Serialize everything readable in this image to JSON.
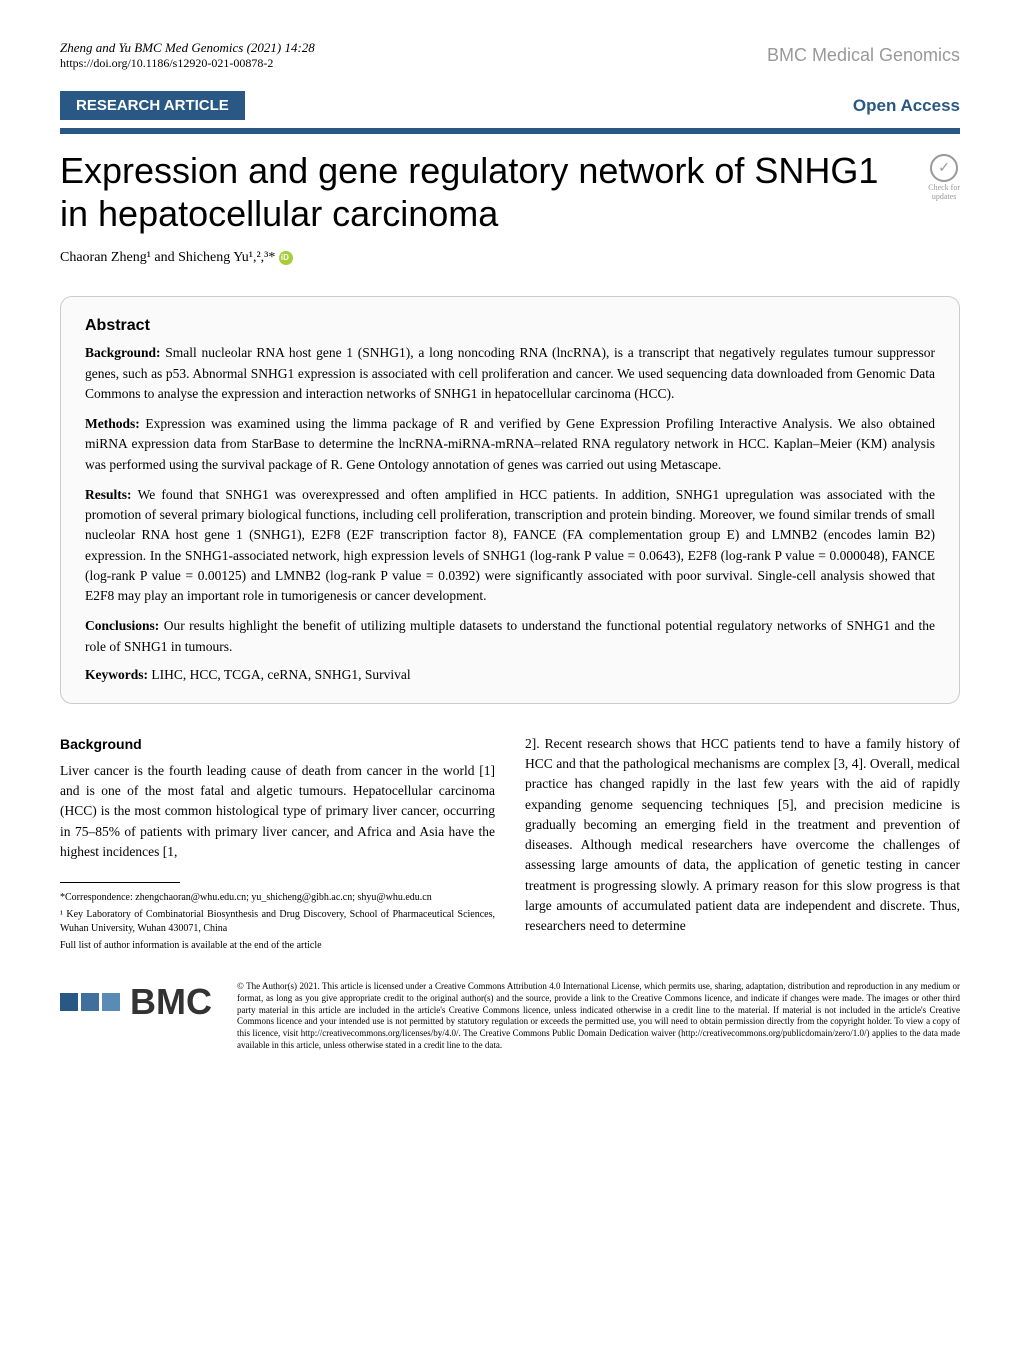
{
  "header": {
    "citation": "Zheng and Yu BMC Med Genomics    (2021) 14:28",
    "doi": "https://doi.org/10.1186/s12920-021-00878-2",
    "journal": "BMC Medical Genomics"
  },
  "article_type": "RESEARCH ARTICLE",
  "open_access": "Open Access",
  "title": "Expression and gene regulatory network of SNHG1 in hepatocellular carcinoma",
  "check_updates": {
    "line1": "Check for",
    "line2": "updates"
  },
  "authors": "Chaoran Zheng¹ and Shicheng Yu¹,²,³*",
  "abstract": {
    "heading": "Abstract",
    "background_label": "Background: ",
    "background": "Small nucleolar RNA host gene 1 (SNHG1), a long noncoding RNA (lncRNA), is a transcript that negatively regulates tumour suppressor genes, such as p53. Abnormal SNHG1 expression is associated with cell proliferation and cancer. We used sequencing data downloaded from Genomic Data Commons to analyse the expression and interaction networks of SNHG1 in hepatocellular carcinoma (HCC).",
    "methods_label": "Methods: ",
    "methods": "Expression was examined using the limma package of R and verified by Gene Expression Profiling Interactive Analysis. We also obtained miRNA expression data from StarBase to determine the lncRNA-miRNA-mRNA–related RNA regulatory network in HCC. Kaplan–Meier (KM) analysis was performed using the survival package of R. Gene Ontology annotation of genes was carried out using Metascape.",
    "results_label": "Results: ",
    "results": "We found that SNHG1 was overexpressed and often amplified in HCC patients. In addition, SNHG1 upregulation was associated with the promotion of several primary biological functions, including cell proliferation, transcription and protein binding. Moreover, we found similar trends of small nucleolar RNA host gene 1 (SNHG1), E2F8 (E2F transcription factor 8), FANCE (FA complementation group E) and LMNB2 (encodes lamin B2) expression. In the SNHG1-associated network, high expression levels of SNHG1 (log-rank P value = 0.0643), E2F8 (log-rank P value = 0.000048), FANCE (log-rank P value = 0.00125) and LMNB2 (log-rank P value = 0.0392) were significantly associated with poor survival. Single-cell analysis showed that E2F8 may play an important role in tumorigenesis or cancer development.",
    "conclusions_label": "Conclusions: ",
    "conclusions": "Our results highlight the benefit of utilizing multiple datasets to understand the functional potential regulatory networks of SNHG1 and the role of SNHG1 in tumours.",
    "keywords_label": "Keywords: ",
    "keywords": "LIHC, HCC, TCGA, ceRNA, SNHG1, Survival"
  },
  "background_section": {
    "heading": "Background",
    "col1": "Liver cancer is the fourth leading cause of death from cancer in the world [1] and is one of the most fatal and algetic tumours. Hepatocellular carcinoma (HCC) is the most common histological type of primary liver cancer, occurring in 75–85% of patients with primary liver cancer, and Africa and Asia have the highest incidences [1,",
    "col2": "2]. Recent research shows that HCC patients tend to have a family history of HCC and that the pathological mechanisms are complex [3, 4]. Overall, medical practice has changed rapidly in the last few years with the aid of rapidly expanding genome sequencing techniques [5], and precision medicine is gradually becoming an emerging field in the treatment and prevention of diseases. Although medical researchers have overcome the challenges of assessing large amounts of data, the application of genetic testing in cancer treatment is progressing slowly. A primary reason for this slow progress is that large amounts of accumulated patient data are independent and discrete. Thus, researchers need to determine"
  },
  "footnotes": {
    "correspondence": "*Correspondence: zhengchaoran@whu.edu.cn; yu_shicheng@gibh.ac.cn; shyu@whu.edu.cn",
    "affiliation": "¹ Key Laboratory of Combinatorial Biosynthesis and Drug Discovery, School of Pharmaceutical Sciences, Wuhan University, Wuhan 430071, China",
    "author_info": "Full list of author information is available at the end of the article"
  },
  "bmc_logo": "BMC",
  "license": "© The Author(s) 2021. This article is licensed under a Creative Commons Attribution 4.0 International License, which permits use, sharing, adaptation, distribution and reproduction in any medium or format, as long as you give appropriate credit to the original author(s) and the source, provide a link to the Creative Commons licence, and indicate if changes were made. The images or other third party material in this article are included in the article's Creative Commons licence, unless indicated otherwise in a credit line to the material. If material is not included in the article's Creative Commons licence and your intended use is not permitted by statutory regulation or exceeds the permitted use, you will need to obtain permission directly from the copyright holder. To view a copy of this licence, visit http://creativecommons.org/licenses/by/4.0/. The Creative Commons Public Domain Dedication waiver (http://creativecommons.org/publicdomain/zero/1.0/) applies to the data made available in this article, unless otherwise stated in a credit line to the data.",
  "colors": {
    "primary": "#2a5885",
    "gray": "#999999",
    "border": "#cccccc",
    "bg_box": "#fafafa",
    "orcid": "#a6ce39"
  },
  "ref_numbers": {
    "r1": "1",
    "r2": "2",
    "r3": "3",
    "r4": "4",
    "r5": "5"
  }
}
